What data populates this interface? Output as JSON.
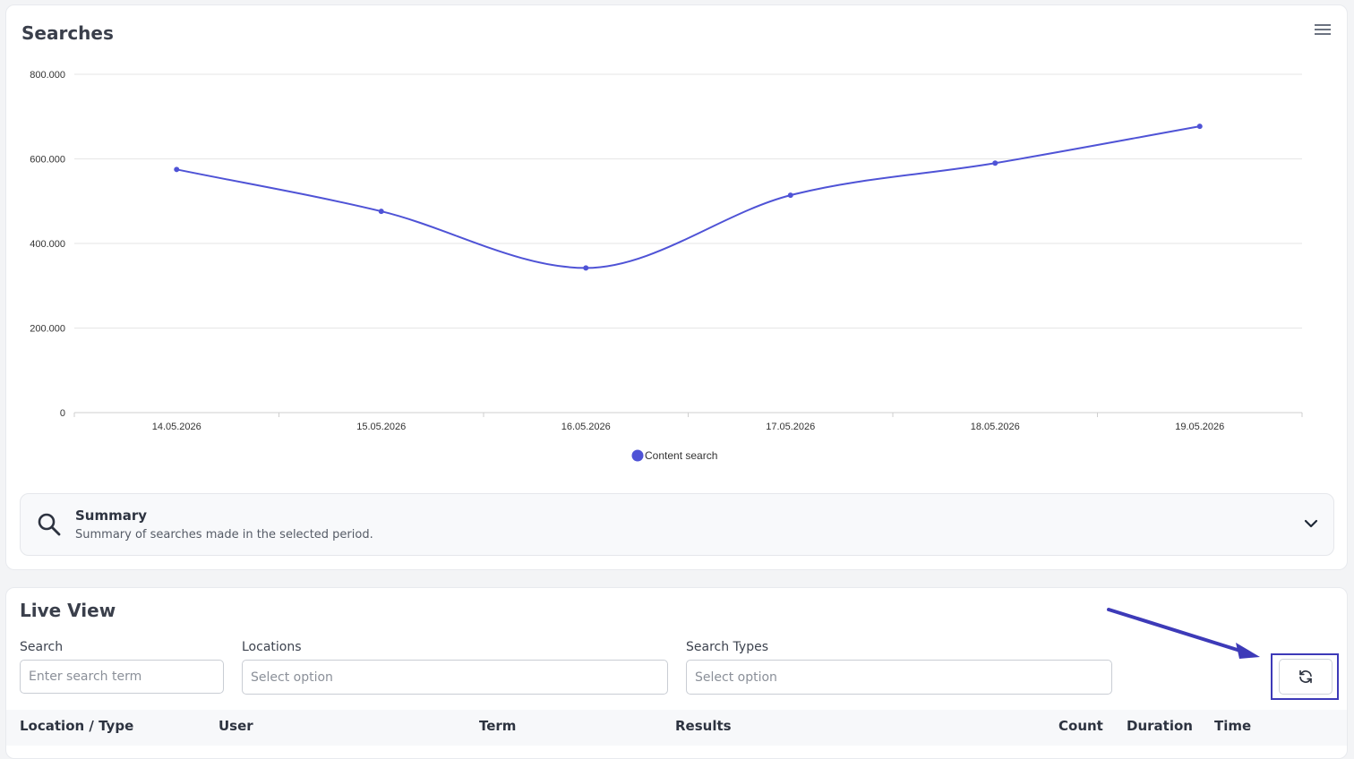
{
  "searches": {
    "title": "Searches",
    "menu_icon": "hamburger-menu-icon"
  },
  "chart_data": {
    "type": "line",
    "x": [
      "14.05.2026",
      "15.05.2026",
      "16.05.2026",
      "17.05.2026",
      "18.05.2026",
      "19.05.2026"
    ],
    "series": [
      {
        "name": "Content search",
        "values": [
          575,
          476,
          342,
          514,
          590,
          677
        ],
        "color": "#4f53d6"
      }
    ],
    "y_ticks": [
      "0",
      "200.000",
      "400.000",
      "600.000",
      "800.000"
    ],
    "y_tick_values": [
      0,
      200,
      400,
      600,
      800
    ],
    "ylim": [
      0,
      800
    ],
    "grid": true,
    "smooth": true,
    "legend": "bottom-center"
  },
  "summary": {
    "title": "Summary",
    "subtitle": "Summary of searches made in the selected period.",
    "icon": "search-icon",
    "toggle_icon": "chevron-down-icon"
  },
  "live_view": {
    "title": "Live View",
    "search_label": "Search",
    "search_placeholder": "Enter search term",
    "search_value": "",
    "locations_label": "Locations",
    "locations_placeholder": "Select option",
    "search_types_label": "Search Types",
    "search_types_placeholder": "Select option",
    "refresh_icon": "refresh-icon",
    "columns": [
      "Location / Type",
      "User",
      "Term",
      "Results",
      "Count",
      "Duration",
      "Time"
    ]
  },
  "annotation": {
    "arrow_color": "#3d3ab8"
  }
}
